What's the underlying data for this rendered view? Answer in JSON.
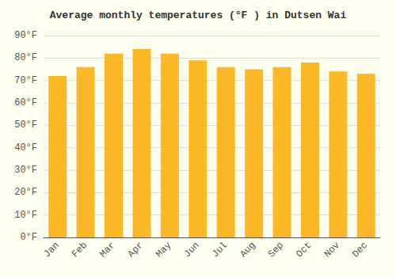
{
  "chart_data": {
    "type": "bar",
    "title": "Average monthly temperatures (°F ) in Dutsen Wai",
    "categories": [
      "Jan",
      "Feb",
      "Mar",
      "Apr",
      "May",
      "Jun",
      "Jul",
      "Aug",
      "Sep",
      "Oct",
      "Nov",
      "Dec"
    ],
    "values": [
      72,
      76,
      82,
      84,
      82,
      79,
      76,
      75,
      76,
      78,
      74,
      73
    ],
    "color": "#FDB827",
    "ylim": [
      0,
      90
    ],
    "yticks": [
      {
        "value": 0,
        "label": "0°F"
      },
      {
        "value": 10,
        "label": "10°F"
      },
      {
        "value": 20,
        "label": "20°F"
      },
      {
        "value": 30,
        "label": "30°F"
      },
      {
        "value": 40,
        "label": "40°F"
      },
      {
        "value": 50,
        "label": "50°F"
      },
      {
        "value": 60,
        "label": "60°F"
      },
      {
        "value": 70,
        "label": "70°F"
      },
      {
        "value": 80,
        "label": "80°F"
      },
      {
        "value": 90,
        "label": "90°F"
      }
    ],
    "grid": true
  }
}
